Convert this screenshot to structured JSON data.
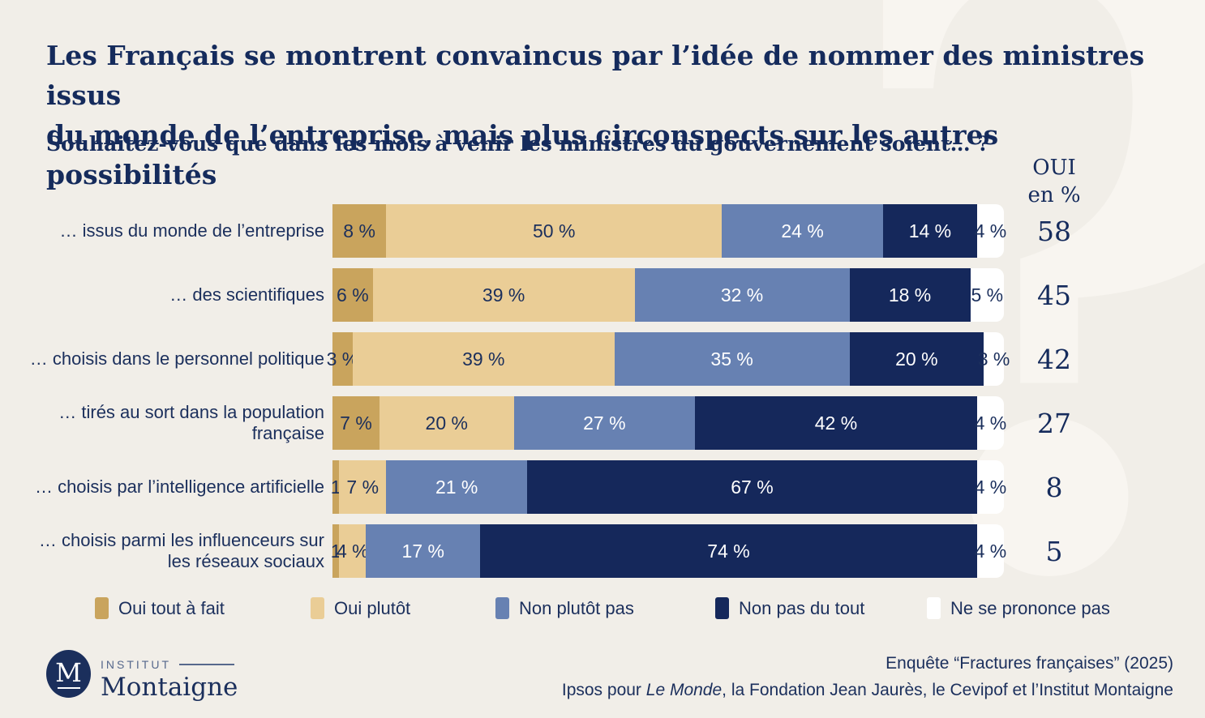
{
  "title_line1": "Les Français se montrent convaincus par l’idée de nommer des ministres issus",
  "title_line2": "du monde de l’entreprise, mais plus circonspects sur les autres possibilités",
  "subtitle": "Souhaitez-vous que dans les mois à venir les ministres du gouvernement soient… ?",
  "oui_header": {
    "line1": "OUI",
    "line2": "en %"
  },
  "watermark_glyph": "?",
  "colors": {
    "background": "#F1EEE8",
    "watermark": "#F8F5F0",
    "navy_text": "#1B2F5C",
    "oui_tout_a_fait": "#C9A45D",
    "oui_plutot": "#EACD96",
    "non_plutot_pas": "#6781B2",
    "non_pas_du_tout": "#15285B",
    "ne_se_prononce_pas": "#FFFFFF"
  },
  "chart_data": {
    "type": "bar",
    "orientation": "horizontal",
    "stacked": true,
    "title": "Les Français se montrent convaincus par l’idée de nommer des ministres issus du monde de l’entreprise, mais plus circonspects sur les autres possibilités",
    "question": "Souhaitez-vous que dans les mois à venir les ministres du gouvernement soient… ?",
    "xlim": [
      0,
      100
    ],
    "unit": "%",
    "legend_position": "bottom",
    "categories": [
      "… issus du monde de l’entreprise",
      "… des scientifiques",
      "… choisis dans le personnel politique",
      "… tirés au sort dans la population française",
      "… choisis par l’intelligence artificielle",
      "… choisis parmi les influenceurs sur les réseaux sociaux"
    ],
    "series": [
      {
        "name": "Oui tout à fait",
        "color": "#C9A45D",
        "label_color": "#1B2F5C",
        "values": [
          8,
          6,
          3,
          7,
          1,
          1
        ]
      },
      {
        "name": "Oui plutôt",
        "color": "#EACD96",
        "label_color": "#1B2F5C",
        "values": [
          50,
          39,
          39,
          20,
          7,
          4
        ]
      },
      {
        "name": "Non plutôt pas",
        "color": "#6781B2",
        "label_color": "#FFFFFF",
        "values": [
          24,
          32,
          35,
          27,
          21,
          17
        ]
      },
      {
        "name": "Non pas du tout",
        "color": "#15285B",
        "label_color": "#FFFFFF",
        "values": [
          14,
          18,
          20,
          42,
          67,
          74
        ]
      },
      {
        "name": "Ne se prononce pas",
        "color": "#FFFFFF",
        "label_color": "#1B2F5C",
        "values": [
          4,
          5,
          3,
          4,
          4,
          4
        ]
      }
    ],
    "segment_labels": [
      [
        "8 %",
        "50 %",
        "24 %",
        "14 %",
        "4 %"
      ],
      [
        "6 %",
        "39 %",
        "32 %",
        "18 %",
        "5 %"
      ],
      [
        "3 %",
        "39 %",
        "35 %",
        "20 %",
        "3 %"
      ],
      [
        "7 %",
        "20 %",
        "27 %",
        "42 %",
        "4 %"
      ],
      [
        "1",
        "7 %",
        "21 %",
        "67 %",
        "4 %"
      ],
      [
        "1",
        "4 %",
        "17 %",
        "74 %",
        "4 %"
      ]
    ],
    "oui_totals": [
      58,
      45,
      42,
      27,
      8,
      5
    ],
    "oui_column_header": "OUI en %"
  },
  "legend": [
    {
      "label": "Oui tout à fait",
      "color": "#C9A45D"
    },
    {
      "label": "Oui plutôt",
      "color": "#EACD96"
    },
    {
      "label": "Non plutôt pas",
      "color": "#6781B2"
    },
    {
      "label": "Non pas du tout",
      "color": "#15285B"
    },
    {
      "label": "Ne se prononce pas",
      "color": "#FFFFFF"
    }
  ],
  "footer": {
    "logo_m": "M",
    "logo_institut": "INSTITUT",
    "logo_montaigne": "Montaigne",
    "source_line1": "Enquête “Fractures françaises” (2025)",
    "source_line2_prefix": "Ipsos pour ",
    "source_line2_italic": "Le Monde",
    "source_line2_suffix": ", la Fondation Jean Jaurès, le Cevipof et l’Institut Montaigne"
  }
}
